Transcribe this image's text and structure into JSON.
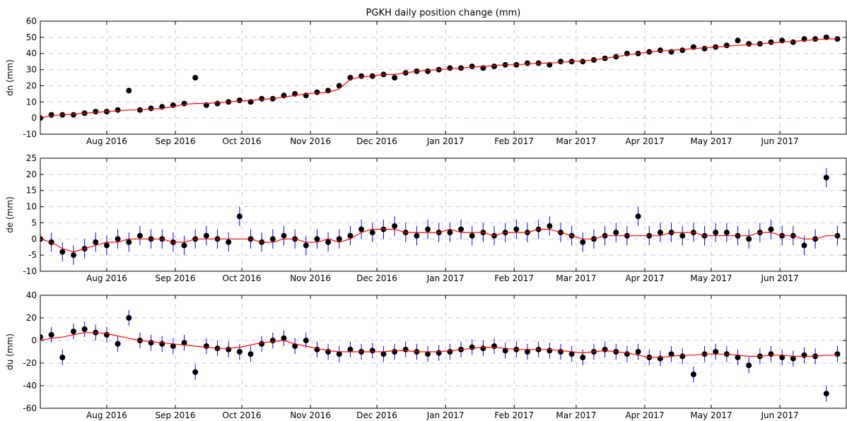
{
  "chart_data": [
    {
      "type": "scatter",
      "title": "PGKH daily position change (mm)",
      "ylabel": "dn (mm)",
      "x": [
        0,
        5,
        10,
        15,
        20,
        25,
        30,
        35,
        40,
        45,
        50,
        55,
        60,
        65,
        70,
        75,
        80,
        85,
        90,
        95,
        100,
        105,
        110,
        115,
        120,
        125,
        130,
        135,
        140,
        145,
        150,
        155,
        160,
        165,
        170,
        175,
        180,
        185,
        190,
        195,
        200,
        205,
        210,
        215,
        220,
        225,
        230,
        235,
        240,
        245,
        250,
        255,
        260,
        265,
        270,
        275,
        280,
        285,
        290,
        295,
        300,
        305,
        310,
        315,
        320,
        325,
        330,
        335,
        340,
        345,
        350,
        355,
        360
      ],
      "values": [
        0,
        2,
        2,
        2,
        3,
        4,
        4,
        5,
        17,
        5,
        6,
        7,
        8,
        9,
        25,
        8,
        9,
        10,
        11,
        10,
        12,
        12,
        14,
        15,
        14,
        16,
        17,
        20,
        25,
        26,
        26,
        27,
        25,
        28,
        29,
        29,
        30,
        31,
        31,
        32,
        31,
        32,
        33,
        33,
        34,
        34,
        33,
        35,
        35,
        35,
        36,
        37,
        38,
        40,
        40,
        41,
        42,
        41,
        42,
        44,
        43,
        44,
        45,
        48,
        46,
        46,
        47,
        48,
        47,
        49,
        49,
        50,
        49
      ],
      "error": 1,
      "fit": [
        0,
        1.5,
        2,
        2.5,
        3,
        3.5,
        4,
        4.5,
        5,
        5,
        5.5,
        6,
        7,
        8.5,
        9,
        9,
        9.5,
        10,
        10.5,
        11,
        11.5,
        12,
        13,
        14,
        15,
        15.5,
        16,
        18,
        24,
        25.5,
        26,
        27,
        27,
        28,
        29,
        29.5,
        30,
        30.5,
        31,
        31.5,
        32,
        32.5,
        33,
        33,
        33.5,
        34,
        34,
        34.5,
        35,
        35.5,
        36,
        37,
        38,
        39,
        40,
        41,
        41.5,
        42,
        42.5,
        43,
        43.5,
        44,
        44.5,
        45,
        45.5,
        46,
        46.5,
        47,
        47.5,
        48,
        48.5,
        49,
        49
      ],
      "color": "#000000",
      "error_color": "#0000ff",
      "fit_color": "#ff0000",
      "xlim": [
        0,
        364
      ],
      "ylim": [
        -10,
        60
      ],
      "yticks": [
        -10,
        0,
        10,
        20,
        30,
        40,
        50,
        60
      ],
      "xticks": [
        {
          "value": 30,
          "label": "Aug 2016"
        },
        {
          "value": 61,
          "label": "Sep 2016"
        },
        {
          "value": 91,
          "label": "Oct 2016"
        },
        {
          "value": 122,
          "label": "Nov 2016"
        },
        {
          "value": 152,
          "label": "Dec 2016"
        },
        {
          "value": 183,
          "label": "Jan 2017"
        },
        {
          "value": 214,
          "label": "Feb 2017"
        },
        {
          "value": 242,
          "label": "Mar 2017"
        },
        {
          "value": 273,
          "label": "Apr 2017"
        },
        {
          "value": 303,
          "label": "May 2017"
        },
        {
          "value": 334,
          "label": "Jun 2017"
        }
      ],
      "grid": true
    },
    {
      "type": "scatter",
      "ylabel": "de (mm)",
      "x": [
        0,
        5,
        10,
        15,
        20,
        25,
        30,
        35,
        40,
        45,
        50,
        55,
        60,
        65,
        70,
        75,
        80,
        85,
        90,
        95,
        100,
        105,
        110,
        115,
        120,
        125,
        130,
        135,
        140,
        145,
        150,
        155,
        160,
        165,
        170,
        175,
        180,
        185,
        190,
        195,
        200,
        205,
        210,
        215,
        220,
        225,
        230,
        235,
        240,
        245,
        250,
        255,
        260,
        265,
        270,
        275,
        280,
        285,
        290,
        295,
        300,
        305,
        310,
        315,
        320,
        325,
        330,
        335,
        340,
        345,
        350,
        355,
        360
      ],
      "values": [
        0,
        -1,
        -4,
        -5,
        -3,
        -1,
        -2,
        0,
        -1,
        1,
        0,
        0,
        -1,
        -2,
        0,
        1,
        0,
        -1,
        7,
        0,
        -1,
        0,
        1,
        0,
        -2,
        0,
        -1,
        0,
        1,
        3,
        2,
        3,
        4,
        2,
        1,
        3,
        2,
        2,
        3,
        1,
        2,
        1,
        2,
        3,
        2,
        3,
        4,
        2,
        1,
        -1,
        0,
        1,
        2,
        1,
        7,
        1,
        2,
        2,
        1,
        2,
        1,
        2,
        2,
        1,
        0,
        2,
        3,
        1,
        1,
        -2,
        0,
        19,
        1
      ],
      "error": 3,
      "fit": [
        0,
        -1,
        -3,
        -4,
        -3,
        -2,
        -1,
        -1,
        0,
        0,
        0,
        0,
        -1,
        -1,
        0,
        0,
        0,
        0,
        0,
        0,
        -1,
        -1,
        0,
        0,
        -1,
        -1,
        0,
        -1,
        0,
        2,
        3,
        3,
        3,
        2,
        2,
        2,
        2,
        3,
        2,
        2,
        2,
        1,
        2,
        2,
        2,
        3,
        3,
        2,
        1,
        0,
        0,
        1,
        1,
        1,
        1,
        1,
        1,
        2,
        2,
        2,
        1,
        1,
        1,
        1,
        1,
        2,
        2,
        1,
        1,
        0,
        0,
        1,
        1
      ],
      "color": "#000000",
      "error_color": "#0000ff",
      "fit_color": "#ff0000",
      "xlim": [
        0,
        364
      ],
      "ylim": [
        -10,
        25
      ],
      "yticks": [
        -10,
        -5,
        0,
        5,
        10,
        15,
        20,
        25
      ],
      "xticks": [
        {
          "value": 30,
          "label": "Aug 2016"
        },
        {
          "value": 61,
          "label": "Sep 2016"
        },
        {
          "value": 91,
          "label": "Oct 2016"
        },
        {
          "value": 122,
          "label": "Nov 2016"
        },
        {
          "value": 152,
          "label": "Dec 2016"
        },
        {
          "value": 183,
          "label": "Jan 2017"
        },
        {
          "value": 214,
          "label": "Feb 2017"
        },
        {
          "value": 242,
          "label": "Mar 2017"
        },
        {
          "value": 273,
          "label": "Apr 2017"
        },
        {
          "value": 303,
          "label": "May 2017"
        },
        {
          "value": 334,
          "label": "Jun 2017"
        }
      ],
      "grid": true
    },
    {
      "type": "scatter",
      "ylabel": "du (mm)",
      "x": [
        0,
        5,
        10,
        15,
        20,
        25,
        30,
        35,
        40,
        45,
        50,
        55,
        60,
        65,
        70,
        75,
        80,
        85,
        90,
        95,
        100,
        105,
        110,
        115,
        120,
        125,
        130,
        135,
        140,
        145,
        150,
        155,
        160,
        165,
        170,
        175,
        180,
        185,
        190,
        195,
        200,
        205,
        210,
        215,
        220,
        225,
        230,
        235,
        240,
        245,
        250,
        255,
        260,
        265,
        270,
        275,
        280,
        285,
        290,
        295,
        300,
        305,
        310,
        315,
        320,
        325,
        330,
        335,
        340,
        345,
        350,
        355,
        360
      ],
      "values": [
        3,
        5,
        -15,
        8,
        10,
        7,
        5,
        -3,
        20,
        0,
        -2,
        -3,
        -5,
        -2,
        -28,
        -5,
        -7,
        -8,
        -10,
        -12,
        -3,
        0,
        2,
        -5,
        0,
        -8,
        -10,
        -12,
        -8,
        -10,
        -9,
        -12,
        -10,
        -8,
        -10,
        -12,
        -11,
        -10,
        -8,
        -6,
        -7,
        -5,
        -9,
        -8,
        -10,
        -8,
        -9,
        -10,
        -12,
        -15,
        -10,
        -8,
        -10,
        -12,
        -10,
        -15,
        -16,
        -12,
        -14,
        -30,
        -12,
        -10,
        -12,
        -15,
        -22,
        -14,
        -12,
        -15,
        -16,
        -13,
        -14,
        -47,
        -12
      ],
      "error": 7,
      "fit": [
        0,
        2,
        3,
        5,
        7,
        7,
        6,
        4,
        2,
        0,
        -1,
        -2,
        -3,
        -4,
        -5,
        -6,
        -7,
        -7,
        -6,
        -4,
        -2,
        -1,
        0,
        -3,
        -5,
        -7,
        -9,
        -10,
        -10,
        -10,
        -10,
        -10,
        -9,
        -9,
        -10,
        -10,
        -10,
        -9,
        -8,
        -7,
        -6,
        -6,
        -7,
        -8,
        -8,
        -8,
        -8,
        -9,
        -10,
        -11,
        -10,
        -9,
        -10,
        -11,
        -13,
        -15,
        -15,
        -14,
        -13,
        -13,
        -12,
        -12,
        -12,
        -13,
        -14,
        -14,
        -13,
        -13,
        -14,
        -14,
        -14,
        -13,
        -13
      ],
      "color": "#000000",
      "error_color": "#0000ff",
      "fit_color": "#ff0000",
      "xlim": [
        0,
        364
      ],
      "ylim": [
        -60,
        40
      ],
      "yticks": [
        -60,
        -40,
        -20,
        0,
        20,
        40
      ],
      "xticks": [
        {
          "value": 30,
          "label": "Aug 2016"
        },
        {
          "value": 61,
          "label": "Sep 2016"
        },
        {
          "value": 91,
          "label": "Oct 2016"
        },
        {
          "value": 122,
          "label": "Nov 2016"
        },
        {
          "value": 152,
          "label": "Dec 2016"
        },
        {
          "value": 183,
          "label": "Jan 2017"
        },
        {
          "value": 214,
          "label": "Feb 2017"
        },
        {
          "value": 242,
          "label": "Mar 2017"
        },
        {
          "value": 273,
          "label": "Apr 2017"
        },
        {
          "value": 303,
          "label": "May 2017"
        },
        {
          "value": 334,
          "label": "Jun 2017"
        }
      ],
      "grid": true
    }
  ]
}
